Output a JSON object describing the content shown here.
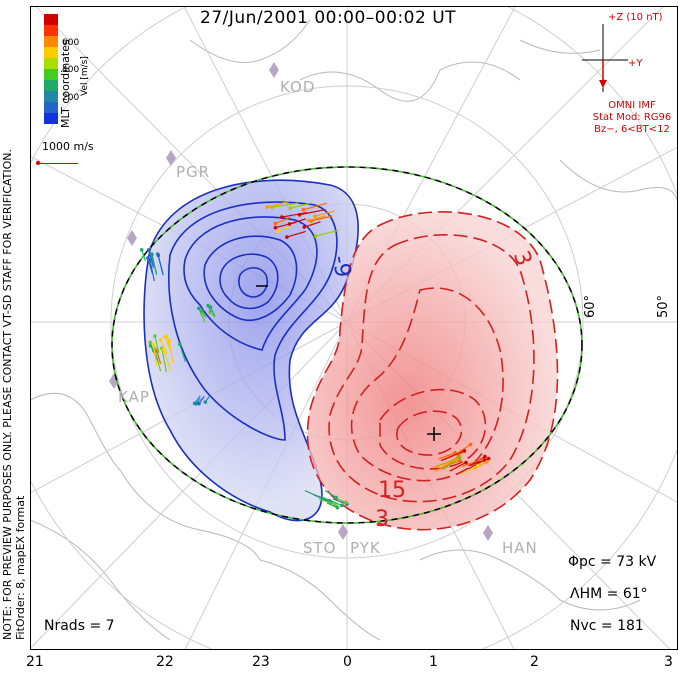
{
  "title": "27/Jun/2001 00:00–00:02 UT",
  "side_note_lines": [
    "NOTE: FOR PREVIEW PURPOSES ONLY. PLEASE CONTACT VT-SD STAFF FOR VERIFICATION.",
    "FitOrder: 8, mapEX format"
  ],
  "coord_label": "MLT coordinates",
  "velocity_unit": "Vel [m/s]",
  "colorbar": {
    "ticks": [
      "600",
      "400",
      "200"
    ],
    "colors": [
      "#d40000",
      "#ff3300",
      "#ff8800",
      "#ffcc00",
      "#aadd00",
      "#44cc22",
      "#22aa66",
      "#2288aa",
      "#2266cc",
      "#1133dd"
    ]
  },
  "reference_vector_label": "1000 m/s",
  "imf": {
    "z_label": "+Z (10 nT)",
    "y_label": "+Y",
    "source": "OMNI IMF",
    "stat_model": "Stat Mod: RG96",
    "bin": "Bz−, 6<BT<12"
  },
  "stats": {
    "phi_pc": "Φpc = 73 kV",
    "lambda_hm": "ΛHM = 61°",
    "n_vc": "Nvc = 181",
    "n_rads": "Nrads = 7"
  },
  "hour_labels": [
    "21",
    "22",
    "23",
    "0",
    "1",
    "2",
    "3"
  ],
  "latitude_labels": [
    "60°",
    "50°"
  ],
  "stations": [
    "KOD",
    "PGR",
    "KAP",
    "STO",
    "PYK",
    "HAN"
  ],
  "contour_labels": [
    "-9",
    "3",
    "15",
    "3"
  ],
  "colors": {
    "negative_cell": "#1a2fc4",
    "positive_cell": "#d42020",
    "heppner_maynard": "#33aa33"
  }
}
